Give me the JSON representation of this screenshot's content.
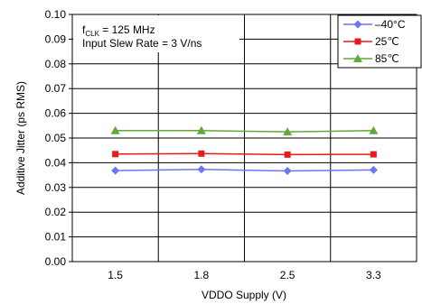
{
  "chart_data": {
    "type": "line",
    "categories": [
      "1.5",
      "1.8",
      "2.5",
      "3.3"
    ],
    "xlabel": "VDDO Supply (V)",
    "ylabel": "Additive Jitter (ps RMS)",
    "ylim": [
      0,
      0.1
    ],
    "yticks": [
      "0.00",
      "0.01",
      "0.02",
      "0.03",
      "0.04",
      "0.05",
      "0.06",
      "0.07",
      "0.08",
      "0.09",
      "0.10"
    ],
    "grid": true,
    "annotation": {
      "line1_prefix": "f",
      "line1_sub": "CLK",
      "line1_rest": " = 125 MHz",
      "line2": "Input Slew Rate = 3 V/ns"
    },
    "legend_position": "top-right",
    "series": [
      {
        "name": "–40°C",
        "color": "#6b77f0",
        "marker": "diamond",
        "values": [
          0.0368,
          0.0373,
          0.0367,
          0.0371
        ]
      },
      {
        "name": "25℃",
        "color": "#e81a1a",
        "marker": "square",
        "values": [
          0.0435,
          0.0437,
          0.0433,
          0.0434
        ]
      },
      {
        "name": "85℃",
        "color": "#5fa83c",
        "marker": "triangle",
        "values": [
          0.053,
          0.053,
          0.0525,
          0.053
        ]
      }
    ]
  }
}
